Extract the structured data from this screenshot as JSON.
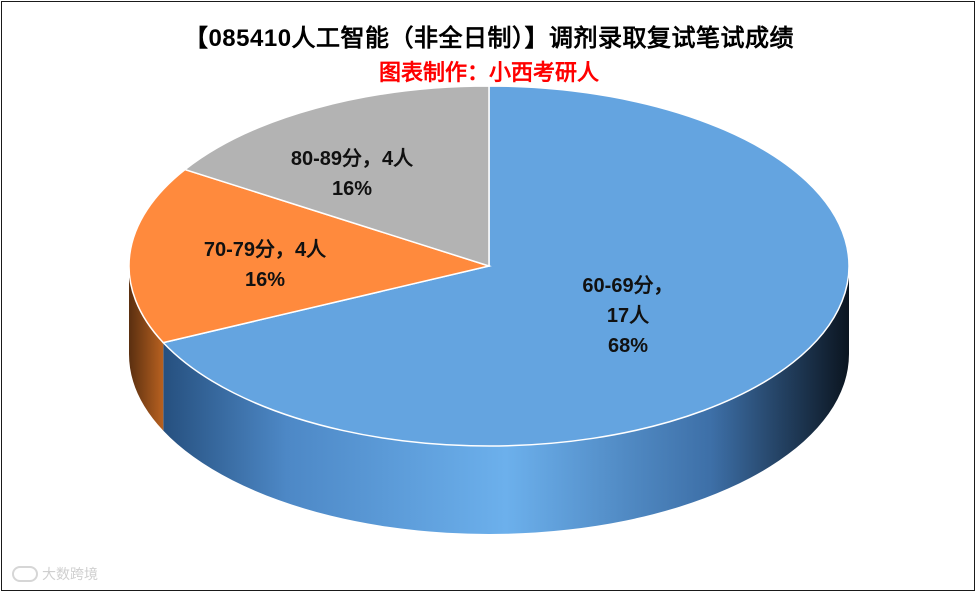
{
  "title": "【085410人工智能（非全日制）】调剂录取复试笔试成绩",
  "subtitle": "图表制作：小西考研人",
  "watermark": "大数跨境",
  "chart_data": {
    "type": "pie",
    "title": "【085410人工智能（非全日制）】调剂录取复试笔试成绩",
    "subtitle": "图表制作：小西考研人",
    "style": "3d-pie",
    "slices": [
      {
        "category": "60-69分",
        "count": 17,
        "count_label": "17人",
        "percent": 68,
        "percent_label": "68%",
        "color": "#64a4e0"
      },
      {
        "category": "70-79分",
        "count": 4,
        "count_label": "4人",
        "percent": 16,
        "percent_label": "16%",
        "color": "#ff8a3d"
      },
      {
        "category": "80-89分",
        "count": 4,
        "count_label": "4人",
        "percent": 16,
        "percent_label": "16%",
        "color": "#b3b3b3"
      }
    ]
  }
}
